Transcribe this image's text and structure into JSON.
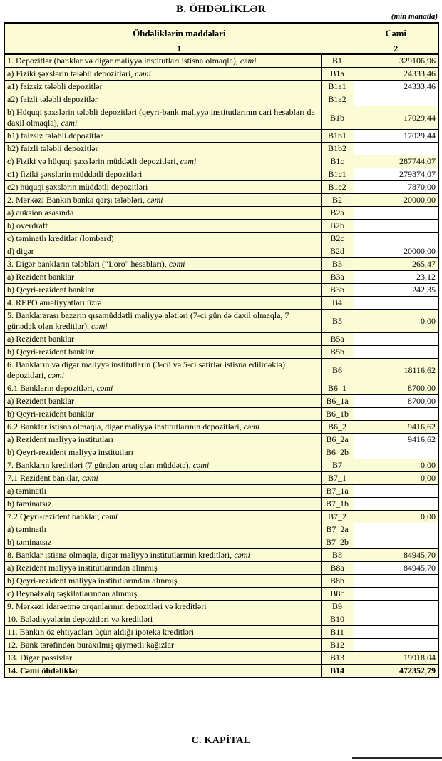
{
  "page": {
    "title": "B. ÖHDƏLİKLƏR",
    "unit_note": "(min manatla)",
    "footer_title": "C. KAPİTAL"
  },
  "colors": {
    "cell_yellow": "#FBFBD6",
    "cell_white": "#FFFFFF",
    "border": "#000000"
  },
  "table": {
    "header": {
      "items_label": "Öhdəliklərin maddələri",
      "total_label": "Cəmi",
      "items_col_num": "1",
      "total_col_num": "2"
    },
    "rows": [
      {
        "label": "1. Depozitlər (banklar və digər maliyyə institutları istisna olmaqla),",
        "italic": "cəmi",
        "code": "B1",
        "value": "329106,96",
        "indent": 0,
        "value_bg": "yellow",
        "bold": false
      },
      {
        "label": "a)  Fiziki şəxslərin tələbli depozitləri,",
        "italic": "cəmi",
        "code": "B1a",
        "value": "24333,46",
        "indent": 1,
        "value_bg": "yellow",
        "bold": false
      },
      {
        "label": "a1) faizsiz tələbli depozitlər",
        "italic": "",
        "code": "B1a1",
        "value": "24333,46",
        "indent": 2,
        "value_bg": "white",
        "bold": false
      },
      {
        "label": "a2) faizli tələbli depozitlər",
        "italic": "",
        "code": "B1a2",
        "value": "",
        "indent": 2,
        "value_bg": "white",
        "bold": false
      },
      {
        "label": "b) Hüquqi şəxslərin tələbli depozitləri (qeyri-bank maliyyə institutlarının cari hesabları da daxil olmaqla),",
        "italic": "cəmi",
        "code": "B1b",
        "value": "17029,44",
        "indent": 1,
        "value_bg": "yellow",
        "bold": false
      },
      {
        "label": "b1) faizsiz tələbli depozitlər",
        "italic": "",
        "code": "B1b1",
        "value": "17029,44",
        "indent": 2,
        "value_bg": "white",
        "bold": false
      },
      {
        "label": "b2) faizli tələbli depozitlər",
        "italic": "",
        "code": "B1b2",
        "value": "",
        "indent": 2,
        "value_bg": "white",
        "bold": false
      },
      {
        "label": "c) Fiziki və hüquqi şəxslərin müddətli depozitləri,",
        "italic": "cəmi",
        "code": "B1c",
        "value": "287744,07",
        "indent": 1,
        "value_bg": "yellow",
        "bold": false
      },
      {
        "label": "c1) fiziki şəxslərin müddətli depozitləri",
        "italic": "",
        "code": "B1c1",
        "value": "279874,07",
        "indent": 2,
        "value_bg": "white",
        "bold": false
      },
      {
        "label": "c2) hüquqi şəxslərin müddətli depozitləri",
        "italic": "",
        "code": "B1c2",
        "value": "7870,00",
        "indent": 2,
        "value_bg": "white",
        "bold": false
      },
      {
        "label": "2. Mərkəzi Bankın banka qarşı tələbləri,",
        "italic": "cəmi",
        "code": "B2",
        "value": "20000,00",
        "indent": 0,
        "value_bg": "yellow",
        "bold": false
      },
      {
        "label": "a) auksion əsasında",
        "italic": "",
        "code": "B2a",
        "value": "",
        "indent": 1,
        "value_bg": "white",
        "bold": false
      },
      {
        "label": "b) overdraft",
        "italic": "",
        "code": "B2b",
        "value": "",
        "indent": 1,
        "value_bg": "white",
        "bold": false
      },
      {
        "label": "c) təminatlı kreditlər (lombard)",
        "italic": "",
        "code": "B2c",
        "value": "",
        "indent": 1,
        "value_bg": "white",
        "bold": false
      },
      {
        "label": "d) digər",
        "italic": "",
        "code": "B2d",
        "value": "20000,00",
        "indent": 1,
        "value_bg": "white",
        "bold": false
      },
      {
        "label": "3. Digər bankların tələbləri (“Loro\" hesabları),",
        "italic": "cəmi",
        "code": "B3",
        "value": "265,47",
        "indent": 0,
        "value_bg": "yellow",
        "bold": false
      },
      {
        "label": "a) Rezident banklar",
        "italic": "",
        "code": "B3a",
        "value": "23,12",
        "indent": 1,
        "value_bg": "white",
        "bold": false
      },
      {
        "label": "b) Qeyri-rezident banklar",
        "italic": "",
        "code": "B3b",
        "value": "242,35",
        "indent": 1,
        "value_bg": "white",
        "bold": false
      },
      {
        "label": "4. REPO əməliyyatları  üzrə",
        "italic": "",
        "code": "B4",
        "value": "",
        "indent": 0,
        "value_bg": "white",
        "bold": false
      },
      {
        "label": "5. Banklararası bazarın qısamüddətli maliyyə alətləri (7-ci gün də daxil olmaqla, 7 günədək olan kreditlər),",
        "italic": "cəmi",
        "code": "B5",
        "value": "0,00",
        "indent": 0,
        "value_bg": "yellow",
        "bold": false
      },
      {
        "label": "a) Rezident banklar",
        "italic": "",
        "code": "B5a",
        "value": "",
        "indent": 1,
        "value_bg": "white",
        "bold": false
      },
      {
        "label": "b) Qeyri-rezident banklar",
        "italic": "",
        "code": "B5b",
        "value": "",
        "indent": 1,
        "value_bg": "white",
        "bold": false
      },
      {
        "label": "6. Bankların və digər maliyyə institutların (3-cü və 5-ci sətirlər istisna edilməklə) depozitləri,",
        "italic": "cəmi",
        "code": "B6",
        "value": "18116,62",
        "indent": 0,
        "value_bg": "yellow",
        "bold": false
      },
      {
        "label": "6.1  Bankların depozitləri,",
        "italic": "cəmi",
        "code": "B6_1",
        "value": "8700,00",
        "indent": 0,
        "value_bg": "yellow",
        "bold": false
      },
      {
        "label": "a) Rezident banklar",
        "italic": "",
        "code": "B6_1a",
        "value": "8700,00",
        "indent": 1,
        "value_bg": "white",
        "bold": false
      },
      {
        "label": "b) Qeyri-rezident banklar",
        "italic": "",
        "code": "B6_1b",
        "value": "",
        "indent": 1,
        "value_bg": "white",
        "bold": false
      },
      {
        "label": "6.2 Banklar istisna olmaqla, digər maliyyə institutlarının depozitləri,",
        "italic": "cəmi",
        "code": "B6_2",
        "value": "9416,62",
        "indent": 0,
        "value_bg": "yellow",
        "bold": false
      },
      {
        "label": "a) Rezident maliyyə institutları",
        "italic": "",
        "code": "B6_2a",
        "value": "9416,62",
        "indent": 1,
        "value_bg": "white",
        "bold": false
      },
      {
        "label": "b) Qeyri-rezident maliyyə institutları",
        "italic": "",
        "code": "B6_2b",
        "value": "",
        "indent": 1,
        "value_bg": "white",
        "bold": false
      },
      {
        "label": "7. Bankların kreditləri (7 gündən artıq olan müddətə),",
        "italic": "cəmi",
        "code": "B7",
        "value": "0,00",
        "indent": 0,
        "value_bg": "yellow",
        "bold": false
      },
      {
        "label": "7.1 Rezident banklar,",
        "italic": "cəmi",
        "code": "B7_1",
        "value": "0,00",
        "indent": 0,
        "value_bg": "yellow",
        "bold": false
      },
      {
        "label": "a) təminatlı",
        "italic": "",
        "code": "B7_1a",
        "value": "",
        "indent": 1,
        "value_bg": "white",
        "bold": false
      },
      {
        "label": "b) təminatsız",
        "italic": "",
        "code": "B7_1b",
        "value": "",
        "indent": 1,
        "value_bg": "white",
        "bold": false
      },
      {
        "label": "7.2 Qeyri-rezident banklar,",
        "italic": "cəmi",
        "code": "B7_2",
        "value": "0,00",
        "indent": 0,
        "value_bg": "yellow",
        "bold": false
      },
      {
        "label": "a) təminatlı",
        "italic": "",
        "code": "B7_2a",
        "value": "",
        "indent": 1,
        "value_bg": "white",
        "bold": false
      },
      {
        "label": "b) təminatsız",
        "italic": "",
        "code": "B7_2b",
        "value": "",
        "indent": 1,
        "value_bg": "white",
        "bold": false
      },
      {
        "label": "8. Banklar istisna olmaqla, digər maliyyə institutlarının kreditləri,",
        "italic": "cəmi",
        "code": "B8",
        "value": "84945,70",
        "indent": 0,
        "value_bg": "yellow",
        "bold": false
      },
      {
        "label": "a) Rezident maliyyə institutlarından alınmış",
        "italic": "",
        "code": "B8a",
        "value": "84945,70",
        "indent": 1,
        "value_bg": "white",
        "bold": false
      },
      {
        "label": "b) Qeyri-rezident maliyyə institutlarından alınmış",
        "italic": "",
        "code": "B8b",
        "value": "",
        "indent": 1,
        "value_bg": "white",
        "bold": false
      },
      {
        "label": "c) Beynəlxalq təşkilatlarından alınmış",
        "italic": "",
        "code": "B8c",
        "value": "",
        "indent": 1,
        "value_bg": "white",
        "bold": false
      },
      {
        "label": "9. Mərkəzi idarəetmə orqanlarının depozitləri və kreditləri",
        "italic": "",
        "code": "B9",
        "value": "",
        "indent": 0,
        "value_bg": "white",
        "bold": false
      },
      {
        "label": "10. Bələdiyyələrin depozitləri və kreditləri",
        "italic": "",
        "code": "B10",
        "value": "",
        "indent": 0,
        "value_bg": "white",
        "bold": false
      },
      {
        "label": "11. Bankın öz ehtiyacları üçün aldığı ipoteka kreditləri",
        "italic": "",
        "code": "B11",
        "value": "",
        "indent": 0,
        "value_bg": "white",
        "bold": false
      },
      {
        "label": "12. Bank tərəfindən buraxılmış qiymətli kağızlar",
        "italic": "",
        "code": "B12",
        "value": "",
        "indent": 0,
        "value_bg": "white",
        "bold": false
      },
      {
        "label": "13. Digər passivlər",
        "italic": "",
        "code": "B13",
        "value": "19918,04",
        "indent": 0,
        "value_bg": "yellow",
        "bold": false
      },
      {
        "label": "14. Cəmi öhdəliklər",
        "italic": "",
        "code": "B14",
        "value": "472352,79",
        "indent": 0,
        "value_bg": "yellow",
        "bold": true
      }
    ]
  }
}
